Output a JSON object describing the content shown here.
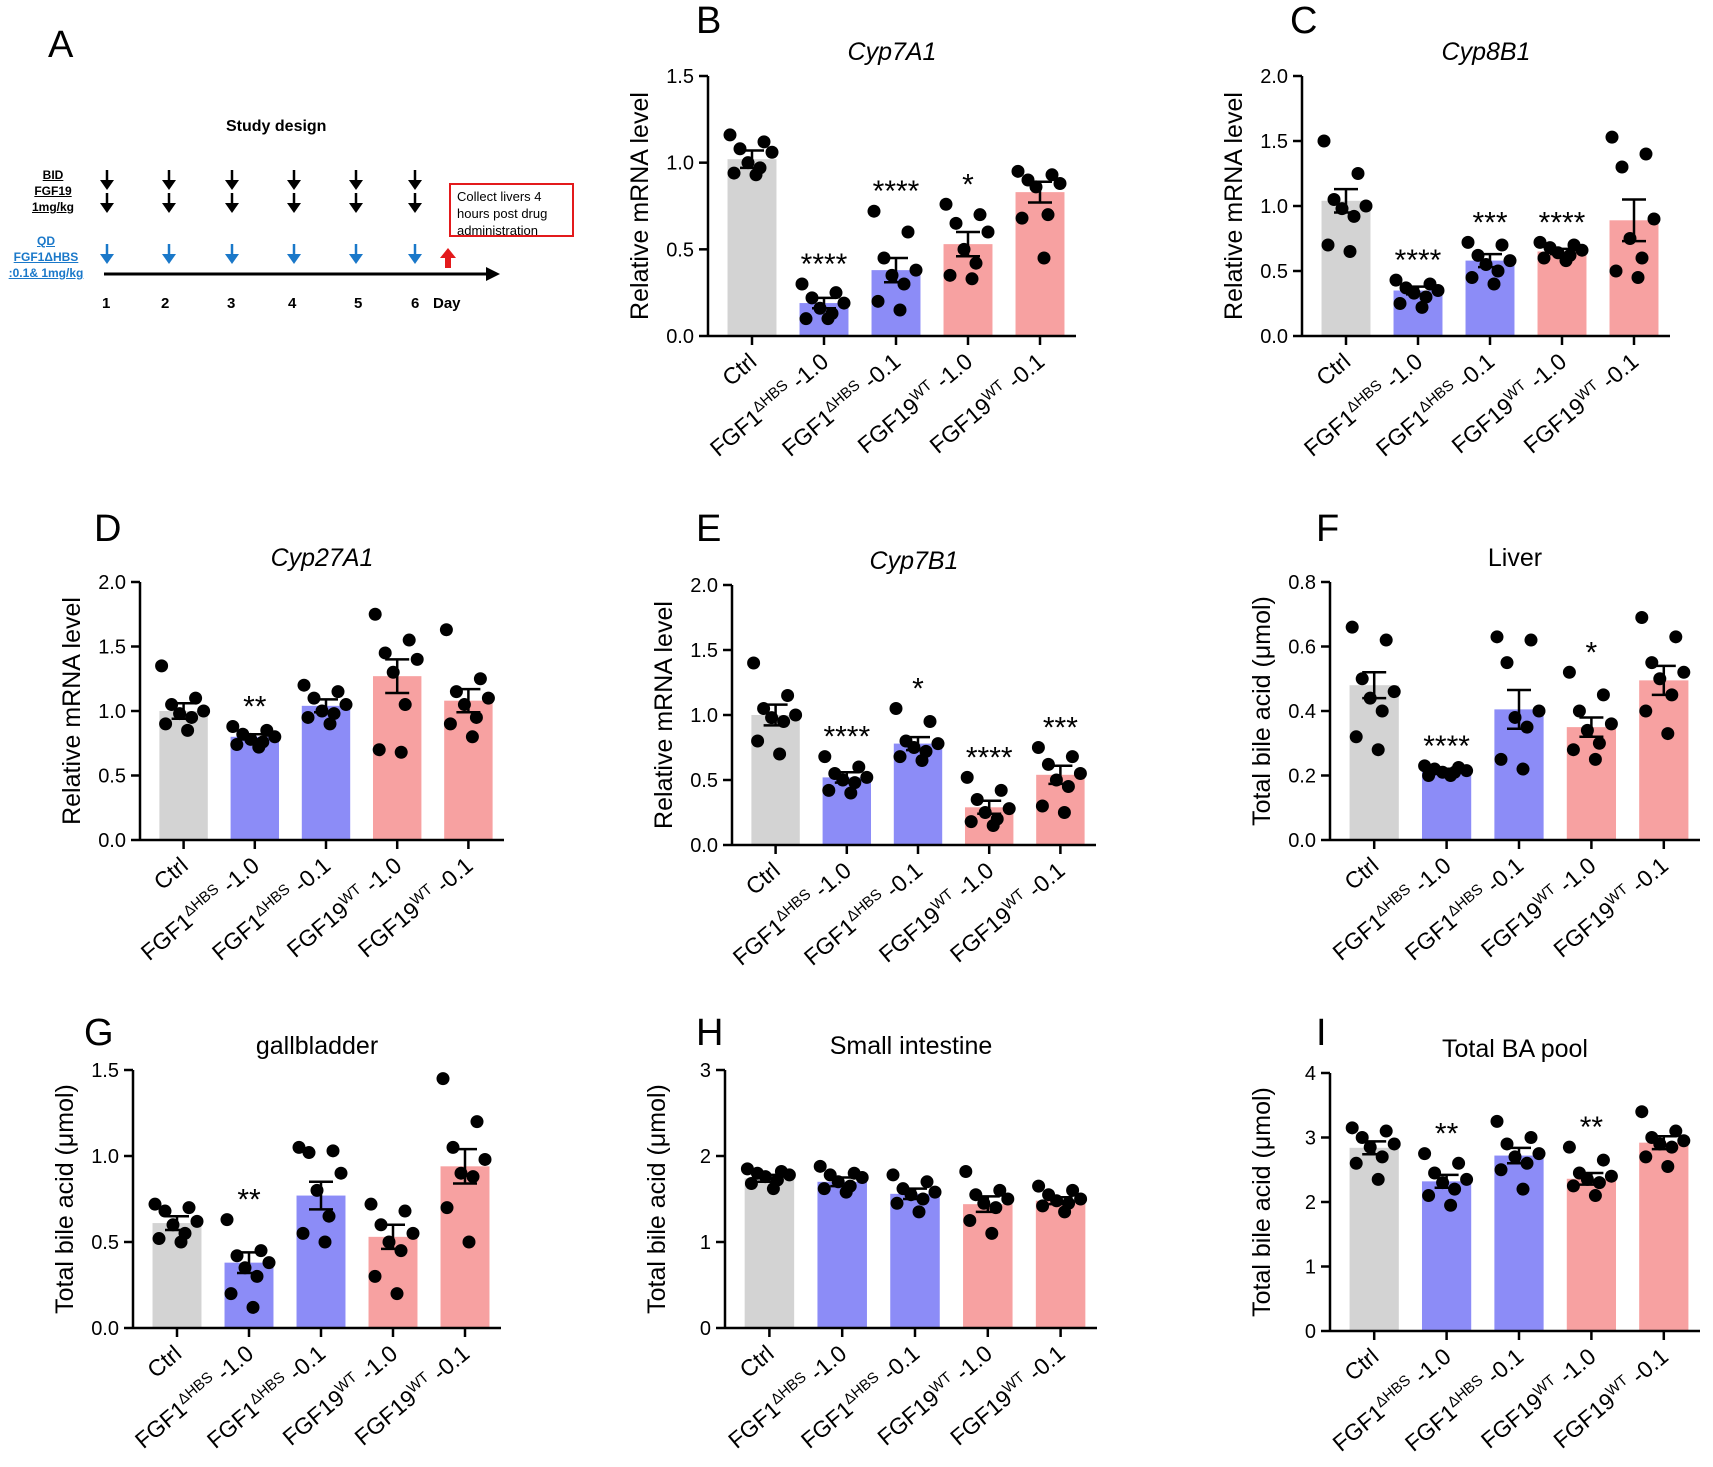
{
  "panel_letters": [
    "A",
    "B",
    "C",
    "D",
    "E",
    "F",
    "G",
    "H",
    "I"
  ],
  "study_design": {
    "title": "Study design",
    "bid_label": [
      "BID",
      "FGF19",
      "1mg/kg"
    ],
    "qd_label": [
      "QD",
      "FGF1ΔHBS",
      ":0.1& 1mg/kg"
    ],
    "collect_text": "Collect livers 4 hours post drug administration",
    "days": [
      "1",
      "2",
      "3",
      "4",
      "5",
      "6"
    ],
    "day_label": "Day",
    "colors": {
      "black_arrow": "#000000",
      "blue_arrow": "#1a78c9",
      "red_arrow": "#e31a1c",
      "box_border": "#e31a1c"
    }
  },
  "group_colors": [
    "#d3d3d3",
    "#8c8cf7",
    "#8c8cf7",
    "#f7a1a1",
    "#f7a1a1"
  ],
  "chart_data": [
    {
      "panel": "B",
      "type": "bar",
      "title": "Cyp7A1",
      "title_italic": true,
      "ylabel": "Relative mRNA level",
      "ylim": [
        0,
        1.5
      ],
      "yticks": [
        "0.0",
        "0.5",
        "1.0",
        "1.5"
      ],
      "categories": [
        {
          "base": "Ctrl",
          "sup": "",
          "tail": ""
        },
        {
          "base": "FGF1",
          "sup": "ΔHBS",
          "tail": "-1.0"
        },
        {
          "base": "FGF1",
          "sup": "ΔHBS",
          "tail": "-0.1"
        },
        {
          "base": "FGF19",
          "sup": "WT",
          "tail": "-1.0"
        },
        {
          "base": "FGF19",
          "sup": "WT",
          "tail": "-0.1"
        }
      ],
      "values": [
        1.02,
        0.19,
        0.38,
        0.53,
        0.83
      ],
      "errors": [
        0.05,
        0.03,
        0.07,
        0.07,
        0.06
      ],
      "points": [
        [
          1.16,
          1.12,
          1.08,
          1.06,
          1.0,
          0.97,
          0.94,
          0.93
        ],
        [
          0.3,
          0.25,
          0.22,
          0.19,
          0.16,
          0.13,
          0.1,
          0.1
        ],
        [
          0.72,
          0.6,
          0.45,
          0.38,
          0.35,
          0.3,
          0.2,
          0.15
        ],
        [
          0.76,
          0.7,
          0.65,
          0.6,
          0.5,
          0.42,
          0.35,
          0.33
        ],
        [
          0.95,
          0.93,
          0.9,
          0.88,
          0.86,
          0.7,
          0.68,
          0.45
        ]
      ],
      "significance": [
        "",
        "****",
        "****",
        "*",
        ""
      ]
    },
    {
      "panel": "C",
      "type": "bar",
      "title": "Cyp8B1",
      "title_italic": true,
      "ylabel": "Relative mRNA level",
      "ylim": [
        0,
        2.0
      ],
      "yticks": [
        "0.0",
        "0.5",
        "1.0",
        "1.5",
        "2.0"
      ],
      "categories": [
        {
          "base": "Ctrl",
          "sup": "",
          "tail": ""
        },
        {
          "base": "FGF1",
          "sup": "ΔHBS",
          "tail": "-1.0"
        },
        {
          "base": "FGF1",
          "sup": "ΔHBS",
          "tail": "-0.1"
        },
        {
          "base": "FGF19",
          "sup": "WT",
          "tail": "-1.0"
        },
        {
          "base": "FGF19",
          "sup": "WT",
          "tail": "-0.1"
        }
      ],
      "values": [
        1.04,
        0.35,
        0.58,
        0.65,
        0.89
      ],
      "errors": [
        0.09,
        0.03,
        0.05,
        0.02,
        0.16
      ],
      "points": [
        [
          1.5,
          1.25,
          1.05,
          1.0,
          0.98,
          0.92,
          0.7,
          0.65
        ],
        [
          0.43,
          0.4,
          0.37,
          0.35,
          0.33,
          0.3,
          0.25,
          0.22
        ],
        [
          0.72,
          0.7,
          0.62,
          0.58,
          0.55,
          0.5,
          0.45,
          0.4
        ],
        [
          0.72,
          0.7,
          0.68,
          0.66,
          0.64,
          0.62,
          0.6,
          0.58
        ],
        [
          1.53,
          1.4,
          1.3,
          0.9,
          0.75,
          0.6,
          0.5,
          0.45
        ]
      ],
      "significance": [
        "",
        "****",
        "***",
        "****",
        ""
      ]
    },
    {
      "panel": "D",
      "type": "bar",
      "title": "Cyp27A1",
      "title_italic": true,
      "ylabel": "Relative mRNA level",
      "ylim": [
        0,
        2.0
      ],
      "yticks": [
        "0.0",
        "0.5",
        "1.0",
        "1.5",
        "2.0"
      ],
      "categories": [
        {
          "base": "Ctrl",
          "sup": "",
          "tail": ""
        },
        {
          "base": "FGF1",
          "sup": "ΔHBS",
          "tail": "-1.0"
        },
        {
          "base": "FGF1",
          "sup": "ΔHBS",
          "tail": "-0.1"
        },
        {
          "base": "FGF19",
          "sup": "WT",
          "tail": "-1.0"
        },
        {
          "base": "FGF19",
          "sup": "WT",
          "tail": "-0.1"
        }
      ],
      "values": [
        1.0,
        0.8,
        1.04,
        1.27,
        1.08
      ],
      "errors": [
        0.06,
        0.02,
        0.05,
        0.13,
        0.09
      ],
      "points": [
        [
          1.35,
          1.1,
          1.05,
          1.0,
          0.98,
          0.95,
          0.9,
          0.85
        ],
        [
          0.88,
          0.85,
          0.82,
          0.8,
          0.78,
          0.76,
          0.74,
          0.72
        ],
        [
          1.2,
          1.15,
          1.1,
          1.05,
          1.0,
          0.98,
          0.95,
          0.9
        ],
        [
          1.75,
          1.55,
          1.45,
          1.4,
          1.3,
          1.05,
          0.7,
          0.68
        ],
        [
          1.63,
          1.25,
          1.15,
          1.1,
          1.05,
          0.95,
          0.9,
          0.8
        ]
      ],
      "significance": [
        "",
        "**",
        "",
        "",
        ""
      ]
    },
    {
      "panel": "E",
      "type": "bar",
      "title": "Cyp7B1",
      "title_italic": true,
      "ylabel": "Relative mRNA level",
      "ylim": [
        0,
        2.0
      ],
      "yticks": [
        "0.0",
        "0.5",
        "1.0",
        "1.5",
        "2.0"
      ],
      "categories": [
        {
          "base": "Ctrl",
          "sup": "",
          "tail": ""
        },
        {
          "base": "FGF1",
          "sup": "ΔHBS",
          "tail": "-1.0"
        },
        {
          "base": "FGF1",
          "sup": "ΔHBS",
          "tail": "-0.1"
        },
        {
          "base": "FGF19",
          "sup": "WT",
          "tail": "-1.0"
        },
        {
          "base": "FGF19",
          "sup": "WT",
          "tail": "-0.1"
        }
      ],
      "values": [
        1.0,
        0.52,
        0.78,
        0.29,
        0.54
      ],
      "errors": [
        0.08,
        0.04,
        0.05,
        0.05,
        0.07
      ],
      "points": [
        [
          1.4,
          1.15,
          1.05,
          1.0,
          0.98,
          0.95,
          0.8,
          0.7
        ],
        [
          0.68,
          0.6,
          0.55,
          0.52,
          0.5,
          0.48,
          0.42,
          0.4
        ],
        [
          1.05,
          0.95,
          0.8,
          0.78,
          0.75,
          0.72,
          0.68,
          0.65
        ],
        [
          0.52,
          0.42,
          0.35,
          0.28,
          0.25,
          0.2,
          0.18,
          0.15
        ],
        [
          0.75,
          0.68,
          0.62,
          0.55,
          0.5,
          0.45,
          0.3,
          0.25
        ]
      ],
      "significance": [
        "",
        "****",
        "*",
        "****",
        "***"
      ]
    },
    {
      "panel": "F",
      "type": "bar",
      "title": "Liver",
      "title_italic": false,
      "ylabel": "Total bile acid (μmol)",
      "ylim": [
        0,
        0.8
      ],
      "yticks": [
        "0.0",
        "0.2",
        "0.4",
        "0.6",
        "0.8"
      ],
      "categories": [
        {
          "base": "Ctrl",
          "sup": "",
          "tail": ""
        },
        {
          "base": "FGF1",
          "sup": "ΔHBS",
          "tail": "-1.0"
        },
        {
          "base": "FGF1",
          "sup": "ΔHBS",
          "tail": "-0.1"
        },
        {
          "base": "FGF19",
          "sup": "WT",
          "tail": "-1.0"
        },
        {
          "base": "FGF19",
          "sup": "WT",
          "tail": "-0.1"
        }
      ],
      "values": [
        0.48,
        0.215,
        0.405,
        0.35,
        0.495
      ],
      "errors": [
        0.04,
        0.006,
        0.06,
        0.03,
        0.045
      ],
      "points": [
        [
          0.66,
          0.62,
          0.5,
          0.46,
          0.44,
          0.4,
          0.32,
          0.28
        ],
        [
          0.23,
          0.225,
          0.22,
          0.215,
          0.21,
          0.21,
          0.2,
          0.2
        ],
        [
          0.63,
          0.62,
          0.55,
          0.4,
          0.38,
          0.35,
          0.25,
          0.22
        ],
        [
          0.52,
          0.45,
          0.4,
          0.36,
          0.34,
          0.3,
          0.28,
          0.25
        ],
        [
          0.69,
          0.63,
          0.55,
          0.52,
          0.5,
          0.45,
          0.4,
          0.33
        ]
      ],
      "significance": [
        "",
        "****",
        "",
        "*",
        ""
      ]
    },
    {
      "panel": "G",
      "type": "bar",
      "title": "gallbladder",
      "title_italic": false,
      "ylabel": "Total bile acid (μmol)",
      "ylim": [
        0,
        1.5
      ],
      "yticks": [
        "0.0",
        "0.5",
        "1.0",
        "1.5"
      ],
      "categories": [
        {
          "base": "Ctrl",
          "sup": "",
          "tail": ""
        },
        {
          "base": "FGF1",
          "sup": "ΔHBS",
          "tail": "-1.0"
        },
        {
          "base": "FGF1",
          "sup": "ΔHBS",
          "tail": "-0.1"
        },
        {
          "base": "FGF19",
          "sup": "WT",
          "tail": "-1.0"
        },
        {
          "base": "FGF19",
          "sup": "WT",
          "tail": "-0.1"
        }
      ],
      "values": [
        0.61,
        0.38,
        0.77,
        0.53,
        0.94
      ],
      "errors": [
        0.04,
        0.06,
        0.08,
        0.07,
        0.1
      ],
      "points": [
        [
          0.72,
          0.7,
          0.68,
          0.62,
          0.6,
          0.55,
          0.52,
          0.5
        ],
        [
          0.63,
          0.45,
          0.42,
          0.38,
          0.35,
          0.3,
          0.2,
          0.12
        ],
        [
          1.05,
          1.03,
          1.02,
          0.9,
          0.8,
          0.65,
          0.55,
          0.5
        ],
        [
          0.72,
          0.68,
          0.6,
          0.55,
          0.5,
          0.45,
          0.3,
          0.2
        ],
        [
          1.45,
          1.2,
          1.05,
          0.98,
          0.9,
          0.88,
          0.7,
          0.5
        ]
      ],
      "significance": [
        "",
        "**",
        "",
        "",
        ""
      ]
    },
    {
      "panel": "H",
      "type": "bar",
      "title": "Small intestine",
      "title_italic": false,
      "ylabel": "Total bile acid (μmol)",
      "ylim": [
        0,
        3
      ],
      "yticks": [
        "0",
        "1",
        "2",
        "3"
      ],
      "categories": [
        {
          "base": "Ctrl",
          "sup": "",
          "tail": ""
        },
        {
          "base": "FGF1",
          "sup": "ΔHBS",
          "tail": "-1.0"
        },
        {
          "base": "FGF1",
          "sup": "ΔHBS",
          "tail": "-0.1"
        },
        {
          "base": "FGF19",
          "sup": "WT",
          "tail": "-1.0"
        },
        {
          "base": "FGF19",
          "sup": "WT",
          "tail": "-0.1"
        }
      ],
      "values": [
        1.74,
        1.7,
        1.56,
        1.44,
        1.48
      ],
      "errors": [
        0.04,
        0.05,
        0.06,
        0.09,
        0.04
      ],
      "points": [
        [
          1.85,
          1.82,
          1.8,
          1.78,
          1.76,
          1.72,
          1.68,
          1.62
        ],
        [
          1.88,
          1.8,
          1.78,
          1.75,
          1.7,
          1.65,
          1.62,
          1.58
        ],
        [
          1.78,
          1.7,
          1.62,
          1.58,
          1.55,
          1.5,
          1.45,
          1.35
        ],
        [
          1.82,
          1.6,
          1.55,
          1.5,
          1.45,
          1.4,
          1.25,
          1.1
        ],
        [
          1.65,
          1.6,
          1.55,
          1.5,
          1.48,
          1.45,
          1.42,
          1.35
        ]
      ],
      "significance": [
        "",
        "",
        "",
        "",
        ""
      ]
    },
    {
      "panel": "I",
      "type": "bar",
      "title": "Total BA pool",
      "title_italic": false,
      "ylabel": "Total bile acid (μmol)",
      "ylim": [
        0,
        4
      ],
      "yticks": [
        "0",
        "1",
        "2",
        "3",
        "4"
      ],
      "categories": [
        {
          "base": "Ctrl",
          "sup": "",
          "tail": ""
        },
        {
          "base": "FGF1",
          "sup": "ΔHBS",
          "tail": "-1.0"
        },
        {
          "base": "FGF1",
          "sup": "ΔHBS",
          "tail": "-0.1"
        },
        {
          "base": "FGF19",
          "sup": "WT",
          "tail": "-1.0"
        },
        {
          "base": "FGF19",
          "sup": "WT",
          "tail": "-0.1"
        }
      ],
      "values": [
        2.84,
        2.32,
        2.72,
        2.36,
        2.92
      ],
      "errors": [
        0.1,
        0.1,
        0.12,
        0.09,
        0.1
      ],
      "points": [
        [
          3.15,
          3.1,
          3.0,
          2.9,
          2.85,
          2.7,
          2.6,
          2.35
        ],
        [
          2.75,
          2.6,
          2.45,
          2.35,
          2.3,
          2.2,
          2.1,
          1.95
        ],
        [
          3.25,
          3.0,
          2.9,
          2.75,
          2.7,
          2.6,
          2.5,
          2.2
        ],
        [
          2.85,
          2.65,
          2.45,
          2.4,
          2.35,
          2.3,
          2.25,
          2.1
        ],
        [
          3.4,
          3.1,
          3.0,
          2.95,
          2.9,
          2.85,
          2.7,
          2.55
        ]
      ],
      "significance": [
        "",
        "**",
        "",
        "**",
        ""
      ]
    }
  ]
}
